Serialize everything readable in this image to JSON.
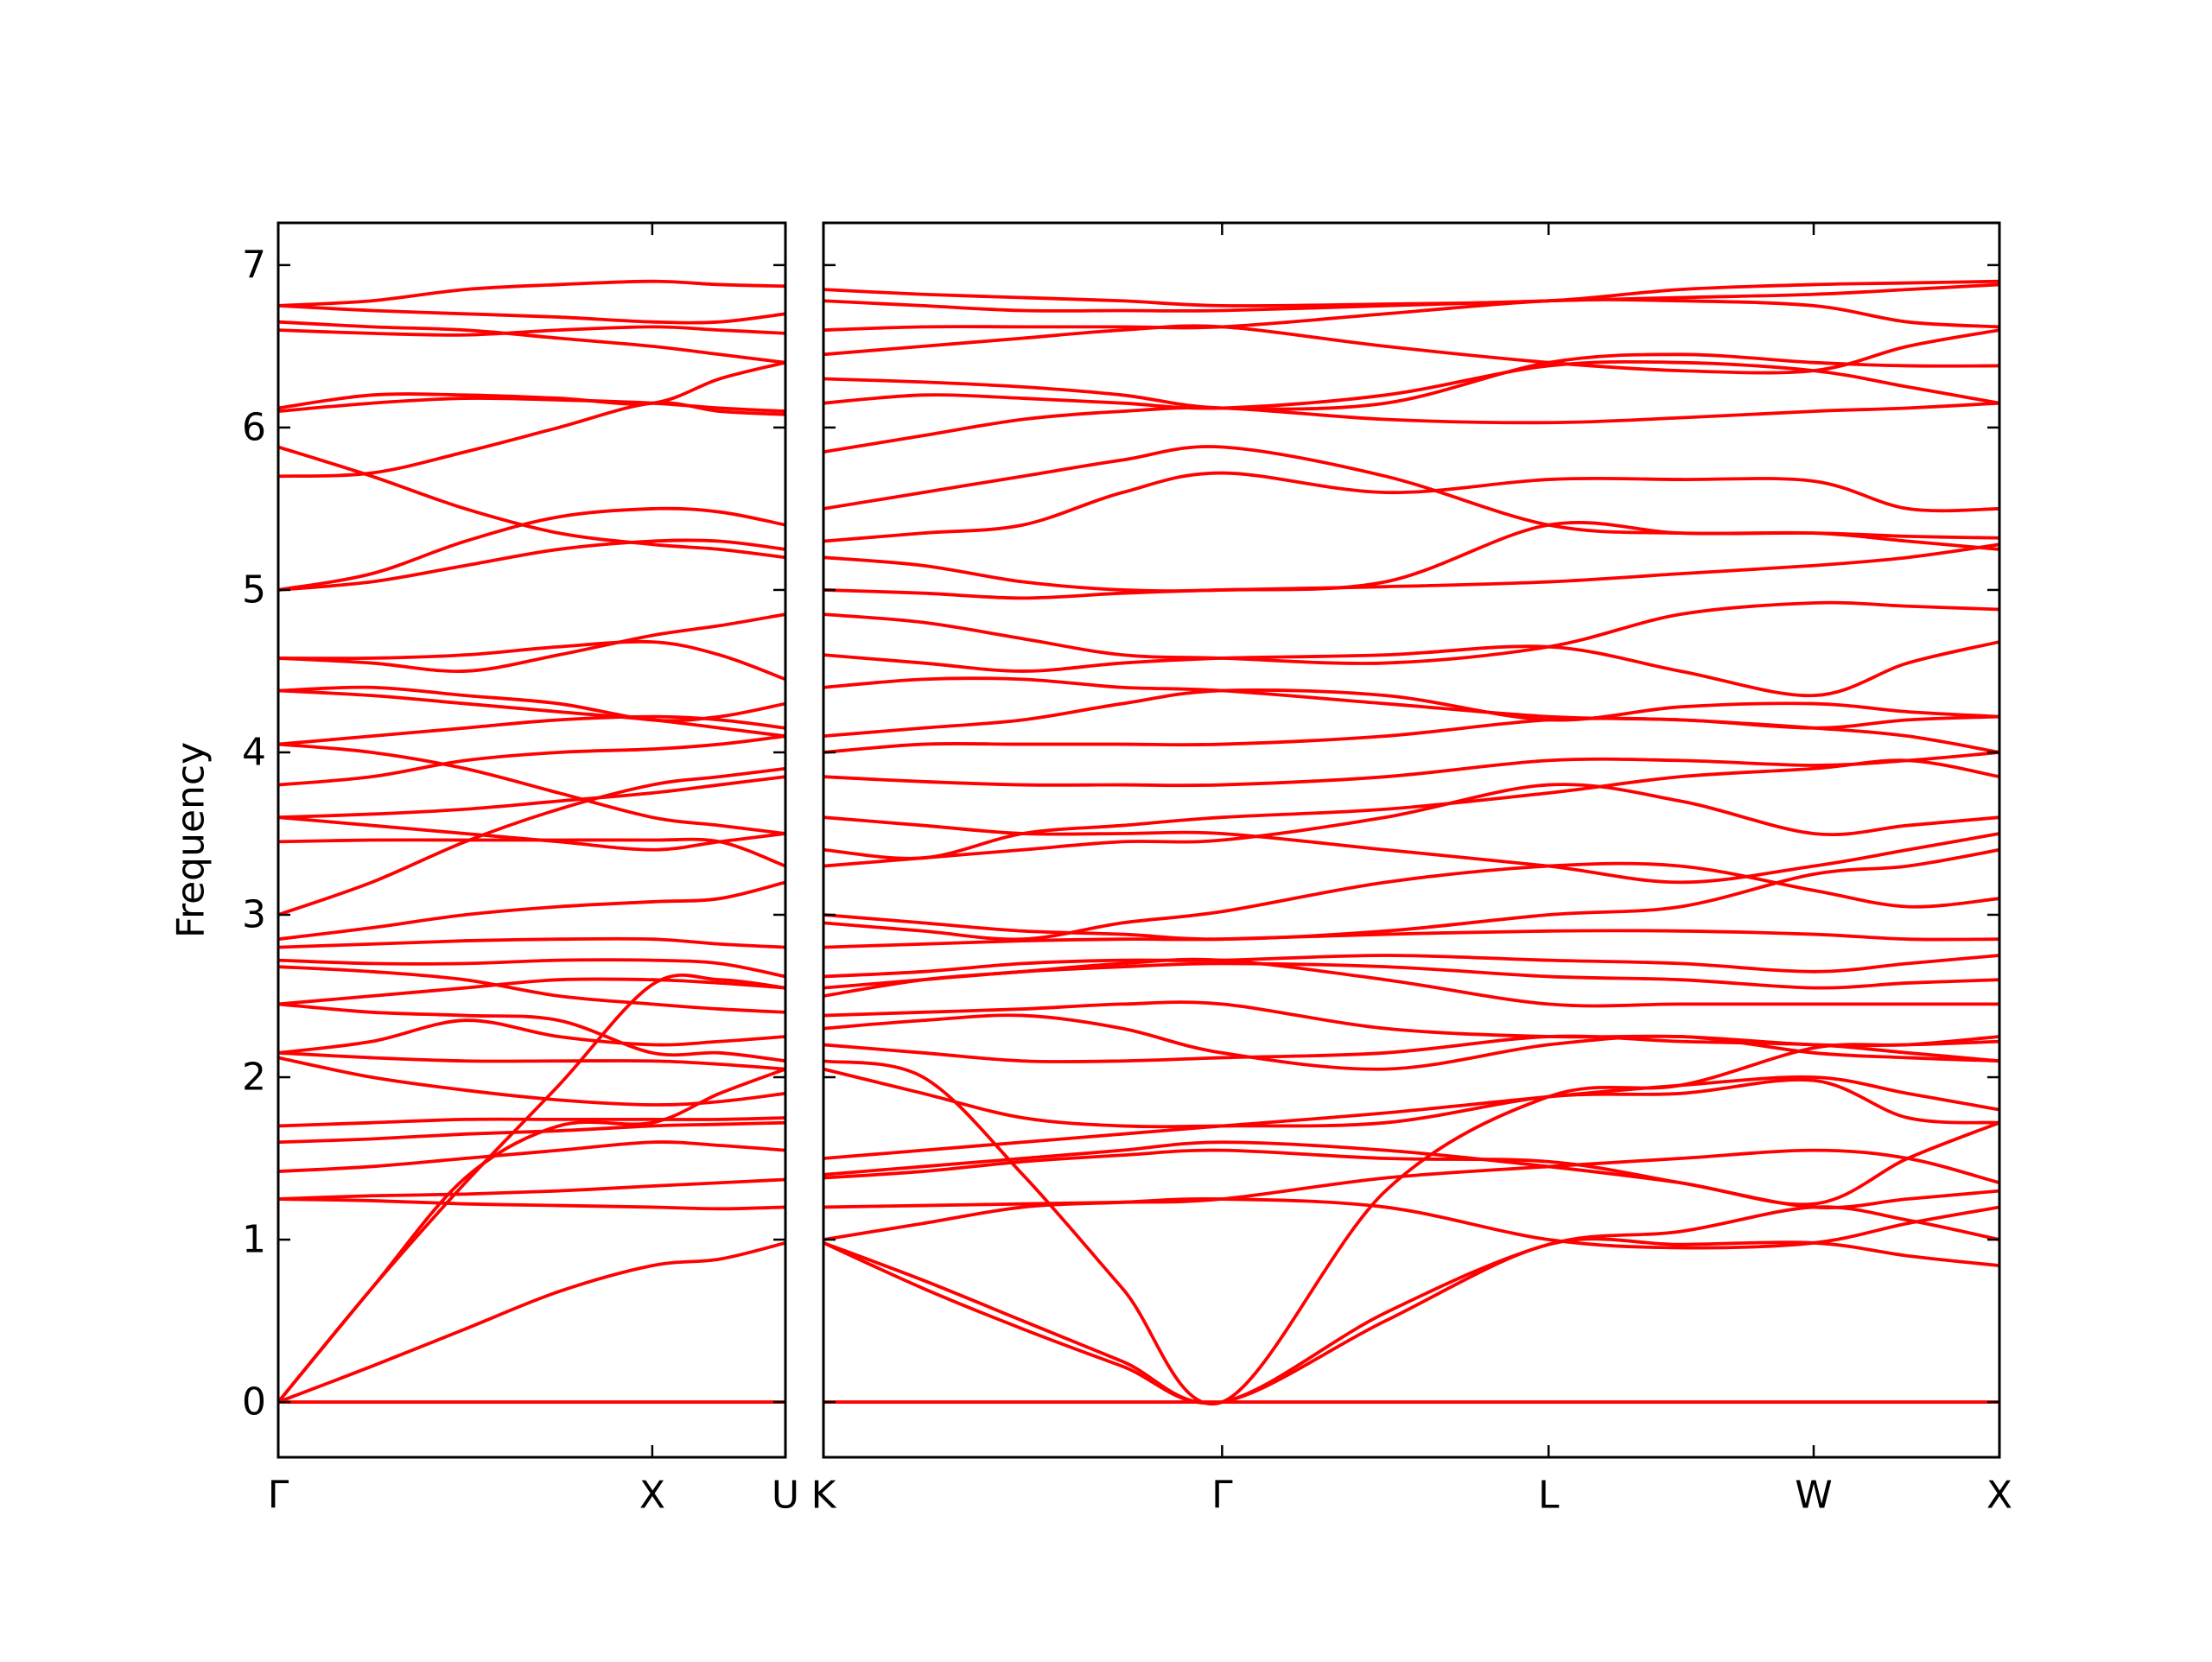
{
  "chart_data": [
    {
      "type": "line",
      "ylabel": "Frequency",
      "color": "#ff0000",
      "x": [
        0,
        0.25,
        0.5,
        0.75,
        1.0,
        1.18,
        1.356
      ],
      "xlim": [
        0,
        1.356
      ],
      "xticks": [
        {
          "value": 0,
          "label": "Γ"
        },
        {
          "value": 1.0,
          "label": "X"
        },
        {
          "value": 1.356,
          "label": "U"
        }
      ],
      "ylim": [
        -0.34,
        7.26
      ],
      "yticks": [
        0,
        1,
        2,
        3,
        4,
        5,
        6,
        7
      ],
      "show_ytick_labels": true,
      "series": [
        {
          "values": [
            0,
            0,
            0,
            0,
            0,
            0,
            0
          ]
        },
        {
          "values": [
            0,
            0.22,
            0.45,
            0.68,
            0.84,
            0.88,
            0.98
          ]
        },
        {
          "values": [
            0,
            0.7,
            1.35,
            1.95,
            2.57,
            2.6,
            2.55
          ]
        },
        {
          "values": [
            0,
            0.7,
            1.38,
            1.7,
            1.72,
            1.9,
            2.05
          ]
        },
        {
          "values": [
            1.25,
            1.24,
            1.22,
            1.21,
            1.2,
            1.19,
            1.2
          ]
        },
        {
          "values": [
            1.25,
            1.27,
            1.28,
            1.3,
            1.33,
            1.35,
            1.37
          ]
        },
        {
          "values": [
            1.42,
            1.45,
            1.5,
            1.55,
            1.6,
            1.58,
            1.55
          ]
        },
        {
          "values": [
            1.6,
            1.62,
            1.65,
            1.67,
            1.7,
            1.71,
            1.72
          ]
        },
        {
          "values": [
            1.7,
            1.72,
            1.74,
            1.74,
            1.74,
            1.74,
            1.75
          ]
        },
        {
          "values": [
            2.12,
            2.0,
            1.92,
            1.86,
            1.83,
            1.85,
            1.9
          ]
        },
        {
          "values": [
            2.15,
            2.12,
            2.1,
            2.1,
            2.1,
            2.08,
            2.05
          ]
        },
        {
          "values": [
            2.15,
            2.22,
            2.35,
            2.25,
            2.2,
            2.22,
            2.25
          ]
        },
        {
          "values": [
            2.45,
            2.4,
            2.38,
            2.35,
            2.15,
            2.15,
            2.1
          ]
        },
        {
          "values": [
            2.45,
            2.5,
            2.55,
            2.6,
            2.6,
            2.58,
            2.55
          ]
        },
        {
          "values": [
            2.68,
            2.65,
            2.6,
            2.5,
            2.45,
            2.42,
            2.4
          ]
        },
        {
          "values": [
            2.72,
            2.7,
            2.7,
            2.72,
            2.72,
            2.7,
            2.62
          ]
        },
        {
          "values": [
            2.8,
            2.82,
            2.84,
            2.85,
            2.85,
            2.82,
            2.8
          ]
        },
        {
          "values": [
            2.85,
            2.92,
            3.0,
            3.05,
            3.08,
            3.1,
            3.2
          ]
        },
        {
          "values": [
            3.0,
            3.2,
            3.45,
            3.65,
            3.8,
            3.85,
            3.9
          ]
        },
        {
          "values": [
            3.45,
            3.46,
            3.46,
            3.46,
            3.46,
            3.45,
            3.3
          ]
        },
        {
          "values": [
            3.6,
            3.55,
            3.5,
            3.45,
            3.4,
            3.45,
            3.5
          ]
        },
        {
          "values": [
            3.6,
            3.62,
            3.65,
            3.7,
            3.75,
            3.8,
            3.85
          ]
        },
        {
          "values": [
            3.8,
            3.85,
            3.95,
            4.0,
            4.02,
            4.05,
            4.1
          ]
        },
        {
          "values": [
            4.05,
            4.1,
            4.15,
            4.2,
            4.22,
            4.2,
            4.15
          ]
        },
        {
          "values": [
            4.05,
            4.0,
            3.9,
            3.75,
            3.6,
            3.55,
            3.5
          ]
        },
        {
          "values": [
            4.38,
            4.4,
            4.35,
            4.3,
            4.2,
            4.22,
            4.3
          ]
        },
        {
          "values": [
            4.38,
            4.35,
            4.3,
            4.25,
            4.2,
            4.15,
            4.1
          ]
        },
        {
          "values": [
            4.58,
            4.58,
            4.6,
            4.65,
            4.68,
            4.6,
            4.45
          ]
        },
        {
          "values": [
            4.58,
            4.55,
            4.5,
            4.6,
            4.72,
            4.78,
            4.85
          ]
        },
        {
          "values": [
            5.0,
            5.05,
            5.15,
            5.25,
            5.3,
            5.3,
            5.25
          ]
        },
        {
          "values": [
            5.0,
            5.1,
            5.3,
            5.45,
            5.5,
            5.48,
            5.4
          ]
        },
        {
          "values": [
            5.7,
            5.72,
            5.85,
            6.0,
            6.15,
            6.1,
            6.08
          ]
        },
        {
          "values": [
            5.88,
            5.7,
            5.5,
            5.35,
            5.28,
            5.25,
            5.2
          ]
        },
        {
          "values": [
            6.1,
            6.15,
            6.18,
            6.17,
            6.15,
            6.12,
            6.1
          ]
        },
        {
          "values": [
            6.12,
            6.2,
            6.2,
            6.18,
            6.15,
            6.3,
            6.4
          ]
        },
        {
          "values": [
            6.6,
            6.58,
            6.57,
            6.6,
            6.62,
            6.6,
            6.58
          ]
        },
        {
          "values": [
            6.65,
            6.62,
            6.6,
            6.55,
            6.5,
            6.45,
            6.4
          ]
        },
        {
          "values": [
            6.75,
            6.78,
            6.85,
            6.88,
            6.9,
            6.88,
            6.87
          ]
        },
        {
          "values": [
            6.75,
            6.72,
            6.7,
            6.68,
            6.65,
            6.65,
            6.7
          ]
        }
      ]
    },
    {
      "type": "line",
      "color": "#ff0000",
      "x": [
        0,
        0.25,
        0.5,
        0.75,
        1.0,
        1.41,
        1.819,
        2.15,
        2.484,
        2.72,
        2.95
      ],
      "xlim": [
        0,
        2.95
      ],
      "xticks": [
        {
          "value": 0,
          "label": "K"
        },
        {
          "value": 1.0,
          "label": "Γ"
        },
        {
          "value": 1.819,
          "label": "L"
        },
        {
          "value": 2.484,
          "label": "W"
        },
        {
          "value": 2.95,
          "label": "X"
        }
      ],
      "ylim": [
        -0.34,
        7.26
      ],
      "yticks": [
        0,
        1,
        2,
        3,
        4,
        5,
        6,
        7
      ],
      "show_ytick_labels": false,
      "series": [
        {
          "values": [
            0,
            0,
            0,
            0,
            0,
            0,
            0,
            0,
            0,
            0,
            0
          ]
        },
        {
          "values": [
            0.98,
            0.7,
            0.45,
            0.22,
            0,
            0.5,
            0.97,
            0.97,
            0.98,
            0.9,
            0.84
          ]
        },
        {
          "values": [
            0.98,
            0.75,
            0.5,
            0.25,
            0,
            0.55,
            0.97,
            1.05,
            1.2,
            1.12,
            1.0
          ]
        },
        {
          "values": [
            2.1,
            2.0,
            1.4,
            0.7,
            0,
            1.3,
            1.88,
            1.95,
            2.18,
            2.2,
            2.25
          ]
        },
        {
          "values": [
            1.0,
            1.1,
            1.2,
            1.23,
            1.25,
            1.2,
            1.0,
            0.95,
            0.98,
            1.1,
            1.2
          ]
        },
        {
          "values": [
            1.2,
            1.21,
            1.22,
            1.23,
            1.25,
            1.38,
            1.45,
            1.5,
            1.55,
            1.5,
            1.35
          ]
        },
        {
          "values": [
            1.38,
            1.42,
            1.48,
            1.52,
            1.55,
            1.5,
            1.48,
            1.35,
            1.2,
            1.25,
            1.3
          ]
        },
        {
          "values": [
            1.4,
            1.45,
            1.5,
            1.55,
            1.6,
            1.55,
            1.45,
            1.35,
            1.22,
            1.5,
            1.72
          ]
        },
        {
          "values": [
            1.5,
            1.55,
            1.6,
            1.65,
            1.7,
            1.78,
            1.88,
            1.95,
            2.0,
            1.9,
            1.8
          ]
        },
        {
          "values": [
            2.05,
            1.9,
            1.75,
            1.7,
            1.7,
            1.72,
            1.88,
            1.9,
            1.98,
            1.75,
            1.72
          ]
        },
        {
          "values": [
            2.2,
            2.15,
            2.1,
            2.1,
            2.12,
            2.15,
            2.25,
            2.22,
            2.2,
            2.15,
            2.1
          ]
        },
        {
          "values": [
            2.3,
            2.35,
            2.38,
            2.3,
            2.15,
            2.05,
            2.2,
            2.25,
            2.15,
            2.12,
            2.1
          ]
        },
        {
          "values": [
            2.38,
            2.4,
            2.42,
            2.45,
            2.45,
            2.3,
            2.25,
            2.25,
            2.2,
            2.2,
            2.22
          ]
        },
        {
          "values": [
            2.5,
            2.6,
            2.65,
            2.7,
            2.72,
            2.6,
            2.45,
            2.45,
            2.45,
            2.45,
            2.45
          ]
        },
        {
          "values": [
            2.55,
            2.6,
            2.65,
            2.68,
            2.7,
            2.68,
            2.62,
            2.6,
            2.55,
            2.58,
            2.6
          ]
        },
        {
          "values": [
            2.62,
            2.65,
            2.7,
            2.72,
            2.72,
            2.75,
            2.72,
            2.7,
            2.65,
            2.7,
            2.75
          ]
        },
        {
          "values": [
            2.8,
            2.82,
            2.84,
            2.85,
            2.85,
            2.88,
            2.9,
            2.9,
            2.88,
            2.85,
            2.85
          ]
        },
        {
          "values": [
            2.95,
            2.9,
            2.85,
            2.95,
            3.02,
            3.2,
            3.3,
            3.3,
            3.15,
            3.05,
            3.1
          ]
        },
        {
          "values": [
            3.0,
            2.95,
            2.9,
            2.88,
            2.85,
            2.9,
            3.0,
            3.05,
            3.25,
            3.3,
            3.4
          ]
        },
        {
          "values": [
            3.3,
            3.35,
            3.4,
            3.45,
            3.46,
            3.6,
            3.8,
            3.7,
            3.5,
            3.55,
            3.6
          ]
        },
        {
          "values": [
            3.4,
            3.35,
            3.5,
            3.55,
            3.6,
            3.65,
            3.75,
            3.85,
            3.9,
            3.95,
            3.85
          ]
        },
        {
          "values": [
            3.6,
            3.55,
            3.5,
            3.5,
            3.5,
            3.4,
            3.3,
            3.2,
            3.3,
            3.4,
            3.5
          ]
        },
        {
          "values": [
            3.85,
            3.82,
            3.8,
            3.8,
            3.8,
            3.85,
            3.95,
            3.95,
            3.92,
            3.95,
            4.0
          ]
        },
        {
          "values": [
            4.0,
            4.05,
            4.05,
            4.05,
            4.05,
            4.1,
            4.2,
            4.2,
            4.15,
            4.2,
            4.22
          ]
        },
        {
          "values": [
            4.1,
            4.15,
            4.2,
            4.3,
            4.38,
            4.35,
            4.2,
            4.28,
            4.3,
            4.25,
            4.22
          ]
        },
        {
          "values": [
            4.4,
            4.45,
            4.45,
            4.4,
            4.38,
            4.3,
            4.22,
            4.2,
            4.15,
            4.1,
            4.0
          ]
        },
        {
          "values": [
            4.6,
            4.55,
            4.5,
            4.55,
            4.58,
            4.6,
            4.65,
            4.5,
            4.35,
            4.55,
            4.68
          ]
        },
        {
          "values": [
            4.85,
            4.8,
            4.7,
            4.6,
            4.58,
            4.55,
            4.65,
            4.85,
            4.92,
            4.9,
            4.88
          ]
        },
        {
          "values": [
            5.0,
            4.98,
            4.95,
            4.98,
            5.0,
            5.02,
            5.05,
            5.1,
            5.15,
            5.2,
            5.28
          ]
        },
        {
          "values": [
            5.2,
            5.15,
            5.05,
            5.0,
            5.0,
            5.05,
            5.4,
            5.35,
            5.35,
            5.33,
            5.32
          ]
        },
        {
          "values": [
            5.3,
            5.35,
            5.4,
            5.6,
            5.72,
            5.6,
            5.68,
            5.68,
            5.67,
            5.5,
            5.5
          ]
        },
        {
          "values": [
            5.5,
            5.6,
            5.7,
            5.8,
            5.88,
            5.7,
            5.4,
            5.35,
            5.35,
            5.3,
            5.25
          ]
        },
        {
          "values": [
            5.85,
            5.95,
            6.05,
            6.1,
            6.12,
            6.05,
            6.03,
            6.06,
            6.1,
            6.12,
            6.15
          ]
        },
        {
          "values": [
            6.15,
            6.2,
            6.18,
            6.15,
            6.12,
            6.2,
            6.38,
            6.4,
            6.35,
            6.25,
            6.15
          ]
        },
        {
          "values": [
            6.3,
            6.28,
            6.25,
            6.2,
            6.12,
            6.15,
            6.4,
            6.45,
            6.4,
            6.38,
            6.38
          ]
        },
        {
          "values": [
            6.45,
            6.5,
            6.55,
            6.6,
            6.62,
            6.5,
            6.4,
            6.35,
            6.35,
            6.5,
            6.6
          ]
        },
        {
          "values": [
            6.6,
            6.62,
            6.62,
            6.62,
            6.62,
            6.7,
            6.78,
            6.78,
            6.75,
            6.65,
            6.62
          ]
        },
        {
          "values": [
            6.78,
            6.75,
            6.72,
            6.72,
            6.72,
            6.75,
            6.78,
            6.8,
            6.82,
            6.85,
            6.88
          ]
        },
        {
          "values": [
            6.85,
            6.82,
            6.8,
            6.78,
            6.75,
            6.76,
            6.78,
            6.85,
            6.88,
            6.89,
            6.9
          ]
        }
      ]
    }
  ]
}
